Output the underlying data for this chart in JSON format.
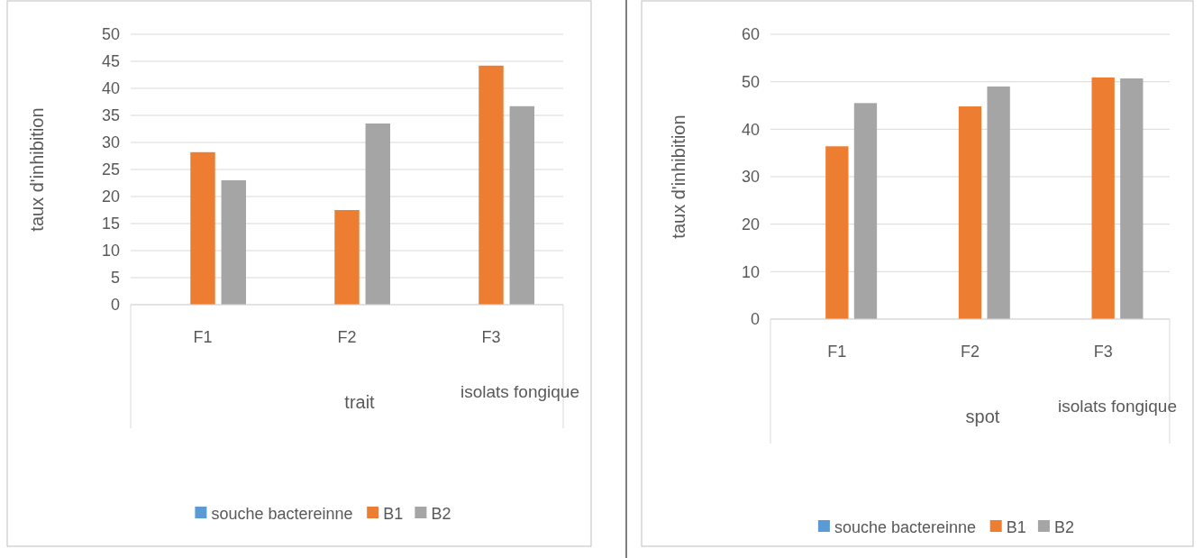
{
  "chart_data": [
    {
      "type": "bar",
      "ylabel": "taux d'inhibition",
      "xlabel": "isolats fongique",
      "annotations": [
        "trait"
      ],
      "categories": [
        "F1",
        "F2",
        "F3"
      ],
      "series": [
        {
          "name": "souche bactereinne",
          "color": "#5b9bd5",
          "values": [
            0,
            0,
            0
          ]
        },
        {
          "name": "B1",
          "color": "#ed7d31",
          "values": [
            28.2,
            17.5,
            44.2
          ]
        },
        {
          "name": "B2",
          "color": "#a5a5a5",
          "values": [
            23,
            33.5,
            36.7
          ]
        }
      ],
      "ylim": [
        0,
        50
      ],
      "yticks": [
        0,
        5,
        10,
        15,
        20,
        25,
        30,
        35,
        40,
        45,
        50
      ],
      "grid": "y",
      "legend": "bottom"
    },
    {
      "type": "bar",
      "ylabel": "taux d'inhibition",
      "xlabel": "isolats fongique",
      "annotations": [
        "spot"
      ],
      "categories": [
        "F1",
        "F2",
        "F3"
      ],
      "series": [
        {
          "name": "souche bactereinne",
          "color": "#5b9bd5",
          "values": [
            0,
            0,
            0
          ]
        },
        {
          "name": "B1",
          "color": "#ed7d31",
          "values": [
            36.4,
            44.8,
            50.9
          ]
        },
        {
          "name": "B2",
          "color": "#a5a5a5",
          "values": [
            45.5,
            49,
            50.7
          ]
        }
      ],
      "ylim": [
        0,
        60
      ],
      "yticks": [
        0,
        10,
        20,
        30,
        40,
        50,
        60
      ],
      "grid": "y",
      "legend": "bottom"
    }
  ]
}
